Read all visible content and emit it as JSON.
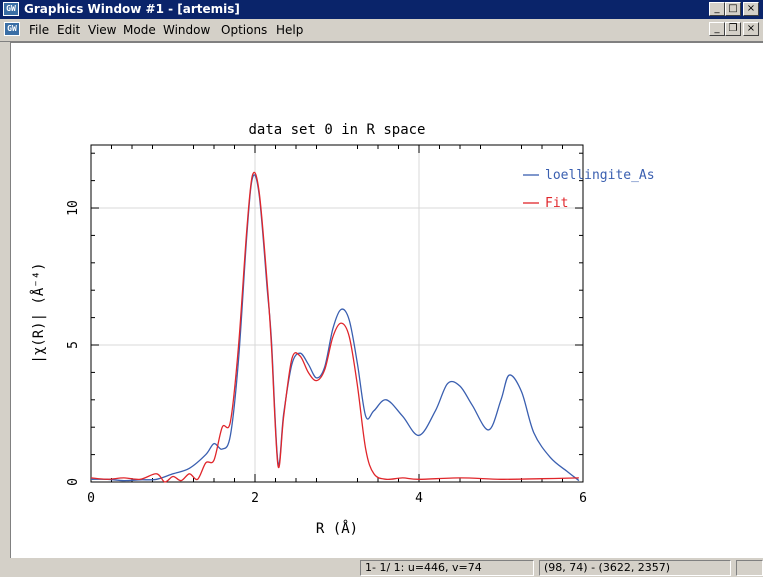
{
  "window": {
    "title": "Graphics Window #1 - [artemis]",
    "icon_label": "GW"
  },
  "menu": {
    "items": [
      "File",
      "Edit",
      "View",
      "Mode",
      "Window",
      "Options",
      "Help"
    ]
  },
  "window_controls": {
    "minimize": "_",
    "maximize": "□",
    "close": "×",
    "restore": "❐"
  },
  "status": {
    "cursor_info": "1- 1/ 1: u=446, v=74",
    "coords": "(98, 74) - (3622, 2357)"
  },
  "chart_data": {
    "type": "line",
    "title": "data set 0 in R space",
    "xlabel": "R (Å)",
    "ylabel": "|χ(R)| (Å⁻⁴)",
    "xlim": [
      0,
      6
    ],
    "ylim": [
      0,
      12.3
    ],
    "xticks": [
      0,
      2,
      4,
      6
    ],
    "yticks": [
      0,
      5,
      10
    ],
    "grid": true,
    "legend_position": "top-right",
    "colors": {
      "data": "#3a5fb0",
      "fit": "#e0262b",
      "grid": "#d8d8d8"
    },
    "series": [
      {
        "name": "loellingite_As",
        "color": "#3a5fb0",
        "x": [
          0.0,
          0.2,
          0.4,
          0.6,
          0.8,
          1.0,
          1.2,
          1.4,
          1.5,
          1.6,
          1.7,
          1.8,
          1.9,
          1.97,
          2.05,
          2.15,
          2.2,
          2.28,
          2.35,
          2.45,
          2.55,
          2.65,
          2.75,
          2.85,
          2.95,
          3.05,
          3.15,
          3.25,
          3.35,
          3.45,
          3.6,
          3.8,
          4.0,
          4.2,
          4.35,
          4.5,
          4.65,
          4.85,
          5.0,
          5.1,
          5.25,
          5.4,
          5.6,
          5.8,
          5.95
        ],
        "y": [
          0.1,
          0.1,
          0.05,
          0.08,
          0.1,
          0.3,
          0.5,
          1.0,
          1.4,
          1.2,
          1.7,
          4.5,
          9.0,
          11.1,
          10.5,
          7.0,
          5.2,
          0.7,
          2.5,
          4.3,
          4.7,
          4.3,
          3.8,
          4.2,
          5.6,
          6.3,
          5.9,
          4.3,
          2.4,
          2.6,
          3.0,
          2.4,
          1.7,
          2.6,
          3.6,
          3.5,
          2.8,
          1.9,
          3.0,
          3.9,
          3.3,
          1.8,
          0.9,
          0.4,
          0.05
        ]
      },
      {
        "name": "Fit",
        "color": "#e0262b",
        "x": [
          0.0,
          0.2,
          0.4,
          0.6,
          0.8,
          0.9,
          1.0,
          1.1,
          1.2,
          1.3,
          1.4,
          1.5,
          1.6,
          1.7,
          1.8,
          1.9,
          1.97,
          2.05,
          2.15,
          2.2,
          2.28,
          2.35,
          2.45,
          2.55,
          2.65,
          2.75,
          2.85,
          2.95,
          3.05,
          3.15,
          3.25,
          3.35,
          3.45,
          3.6,
          3.8,
          4.0,
          4.5,
          5.0,
          5.5,
          5.95
        ],
        "y": [
          0.15,
          0.1,
          0.15,
          0.1,
          0.3,
          0.0,
          0.2,
          0.05,
          0.3,
          0.1,
          0.7,
          0.8,
          2.0,
          2.2,
          5.0,
          9.2,
          11.2,
          10.6,
          7.2,
          5.0,
          0.6,
          2.4,
          4.5,
          4.6,
          4.0,
          3.7,
          4.1,
          5.3,
          5.8,
          5.3,
          3.5,
          1.2,
          0.3,
          0.1,
          0.15,
          0.1,
          0.15,
          0.1,
          0.12,
          0.15
        ]
      }
    ]
  }
}
